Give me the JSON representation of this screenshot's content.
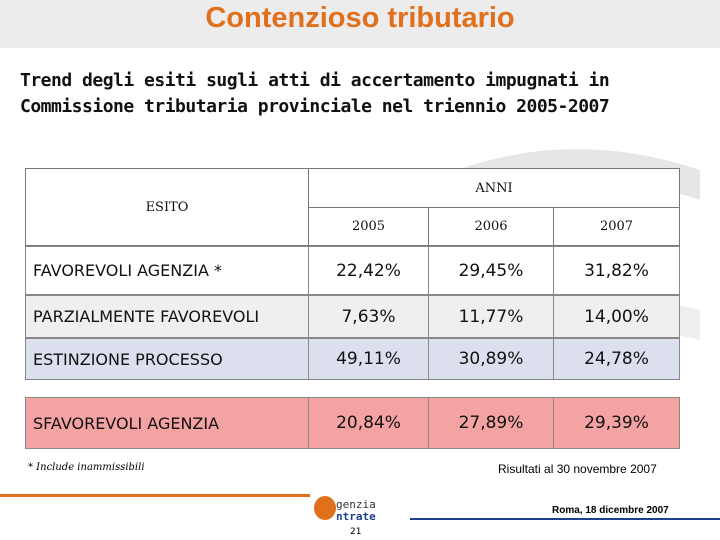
{
  "header": {
    "title": "Contenzioso tributario"
  },
  "subtitle": [
    "Trend degli esiti sugli atti di accertamento impugnati in",
    "Commissione tributaria provinciale nel triennio 2005-2007"
  ],
  "table": {
    "esito_header": "ESITO",
    "anni_header": "ANNI",
    "years": [
      "2005",
      "2006",
      "2007"
    ],
    "rows": [
      [
        "FAVOREVOLI AGENZIA *",
        "22,42%",
        "29,45%",
        "31,82%"
      ],
      [
        "PARZIALMENTE FAVOREVOLI",
        "7,63%",
        "11,77%",
        "14,00%"
      ],
      [
        "ESTINZIONE PROCESSO",
        "49,11%",
        "30,89%",
        "24,78%"
      ],
      [
        "SFAVOREVOLI AGENZIA",
        "20,84%",
        "27,89%",
        "29,39%"
      ]
    ]
  },
  "footnote": "* Include inammissibili",
  "note": "Risultati al 30 novembre 2007",
  "footer": {
    "logo_top": "genzia",
    "logo_bottom": "ntrate",
    "date": "Roma, 18 dicembre 2007",
    "page": "21"
  }
}
